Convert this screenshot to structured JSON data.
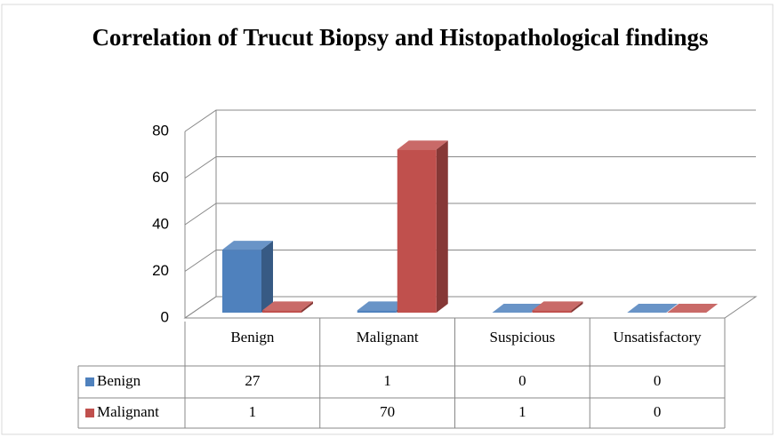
{
  "chart_data": {
    "type": "bar3d",
    "title": "Correlation of Trucut Biopsy and Histopathological findings",
    "categories": [
      "Benign",
      "Malignant",
      "Suspicious",
      "Unsatisfactory"
    ],
    "series": [
      {
        "name": "Benign",
        "color": "#4f81bd",
        "values": [
          27,
          1,
          0,
          0
        ]
      },
      {
        "name": "Malignant",
        "color": "#c0504d",
        "values": [
          1,
          70,
          1,
          0
        ]
      }
    ],
    "ylim": [
      0,
      80
    ],
    "yticks": [
      0,
      20,
      40,
      60,
      80
    ],
    "grid": true,
    "data_table": true
  }
}
